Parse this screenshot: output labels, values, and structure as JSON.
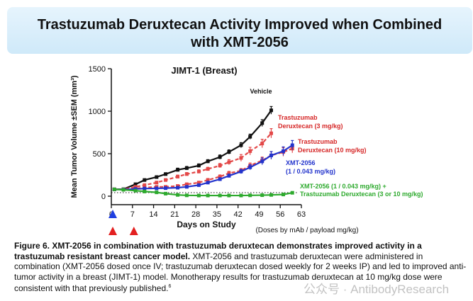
{
  "title": {
    "line1": "Trastuzumab Deruxtecan Activity Improved when Combined",
    "line2": "with XMT-2056"
  },
  "chart_data": {
    "type": "line",
    "title": "JIMT-1 (Breast)",
    "xlabel": "Days on Study",
    "ylabel": "Mean Tumor Volume ±SEM (mm³)",
    "xlim": [
      0,
      63
    ],
    "ylim": [
      -100,
      1500
    ],
    "xticks": [
      "0",
      "7",
      "14",
      "21",
      "28",
      "35",
      "42",
      "49",
      "56",
      "63"
    ],
    "yticks": [
      "0",
      "500",
      "1000",
      "1500"
    ],
    "dose_note": "(Doses by mAb / payload mg/kg)",
    "series": [
      {
        "name": "Vehicle",
        "color": "#111111",
        "dash": false,
        "x": [
          1,
          4,
          8,
          11,
          15,
          18,
          22,
          25,
          29,
          32,
          36,
          39,
          43,
          46,
          50,
          53
        ],
        "y": [
          80,
          82,
          140,
          190,
          225,
          260,
          310,
          330,
          360,
          410,
          460,
          520,
          600,
          700,
          860,
          1010
        ],
        "err": [
          10,
          10,
          15,
          15,
          15,
          15,
          20,
          20,
          20,
          20,
          25,
          25,
          30,
          30,
          40,
          45
        ]
      },
      {
        "name": "Trastuzumab Deruxtecan (3 mg/kg)",
        "color": "#e34848",
        "dash": true,
        "x": [
          1,
          4,
          8,
          11,
          15,
          18,
          22,
          25,
          29,
          32,
          36,
          39,
          43,
          46,
          50,
          53
        ],
        "y": [
          80,
          80,
          110,
          130,
          160,
          190,
          230,
          260,
          290,
          320,
          360,
          400,
          450,
          530,
          620,
          740
        ],
        "err": [
          10,
          10,
          10,
          12,
          15,
          15,
          18,
          18,
          20,
          20,
          25,
          30,
          40,
          45,
          50,
          55
        ]
      },
      {
        "name": "Trastuzumab Deruxtecan (10 mg/kg)",
        "color": "#e34848",
        "dash": true,
        "x": [
          1,
          4,
          8,
          11,
          15,
          18,
          22,
          25,
          29,
          32,
          36,
          39,
          43,
          46,
          50,
          53,
          57,
          60
        ],
        "y": [
          80,
          78,
          90,
          100,
          110,
          110,
          120,
          140,
          160,
          190,
          230,
          270,
          300,
          360,
          420,
          480,
          520,
          560
        ],
        "err": [
          10,
          10,
          10,
          10,
          12,
          12,
          12,
          15,
          15,
          18,
          20,
          22,
          25,
          30,
          40,
          45,
          50,
          50
        ]
      },
      {
        "name": "XMT-2056 (1 / 0.043 mg/kg)",
        "color": "#2233cc",
        "dash": false,
        "x": [
          1,
          4,
          8,
          11,
          15,
          18,
          22,
          25,
          29,
          32,
          36,
          39,
          43,
          46,
          50,
          53,
          57,
          60
        ],
        "y": [
          80,
          78,
          85,
          90,
          92,
          95,
          100,
          110,
          130,
          160,
          200,
          240,
          290,
          340,
          410,
          480,
          530,
          600
        ],
        "err": [
          10,
          10,
          10,
          10,
          10,
          10,
          12,
          12,
          15,
          15,
          18,
          20,
          25,
          30,
          40,
          45,
          50,
          55
        ]
      },
      {
        "name": "XMT-2056 (1 / 0.043 mg/kg) + Trastuzumab Deruxtecan (3 or 10 mg/kg)",
        "color": "#2eaa2e",
        "dash": false,
        "x": [
          1,
          4,
          8,
          11,
          15,
          18,
          22,
          25,
          29,
          32,
          36,
          39,
          43,
          46,
          50,
          53,
          57,
          60
        ],
        "y": [
          80,
          75,
          65,
          55,
          45,
          30,
          15,
          10,
          8,
          8,
          8,
          8,
          8,
          10,
          12,
          15,
          20,
          40
        ],
        "err": [
          8,
          8,
          8,
          8,
          6,
          6,
          5,
          5,
          5,
          5,
          5,
          5,
          5,
          5,
          5,
          5,
          8,
          10
        ]
      }
    ],
    "annotations": {
      "vehicle": "Vehicle",
      "tdxd3_line1": "Trastuzumab",
      "tdxd3_line2": "Deruxtecan (3 mg/kg)",
      "tdxd10_line1": "Trastuzumab",
      "tdxd10_line2": "Deruxtecan (10 mg/kg)",
      "xmt_line1": "XMT-2056",
      "xmt_line2": "(1 / 0.043 mg/kg)",
      "combo_line1": "XMT-2056 (1 / 0.043 mg/kg) +",
      "combo_line2": "Trastuzumab Deruxtecan (3 or 10 mg/kg)"
    },
    "dosing": {
      "blue_days": [
        0
      ],
      "red_days": [
        0,
        7
      ]
    }
  },
  "caption": {
    "bold": "Figure 6. XMT-2056 in combination with trastuzumab deruxtecan demonstrates improved activity in a trastuzumab resistant breast cancer model.",
    "text": " XMT-2056 and trastuzumab deruxtecan  were administered in combination (XMT-2056 dosed once IV; trastuzumab deruxtecan dosed weekly for 2 weeks IP) and led to improved anti-tumor activity in a breast (JIMT-1) model.  Monotherapy results for trastuzumab deruxtecan  at 10 mg/kg dose were consistent with that previously published.",
    "ref": "6"
  },
  "watermark": "公众号 · AntibodyResearch"
}
